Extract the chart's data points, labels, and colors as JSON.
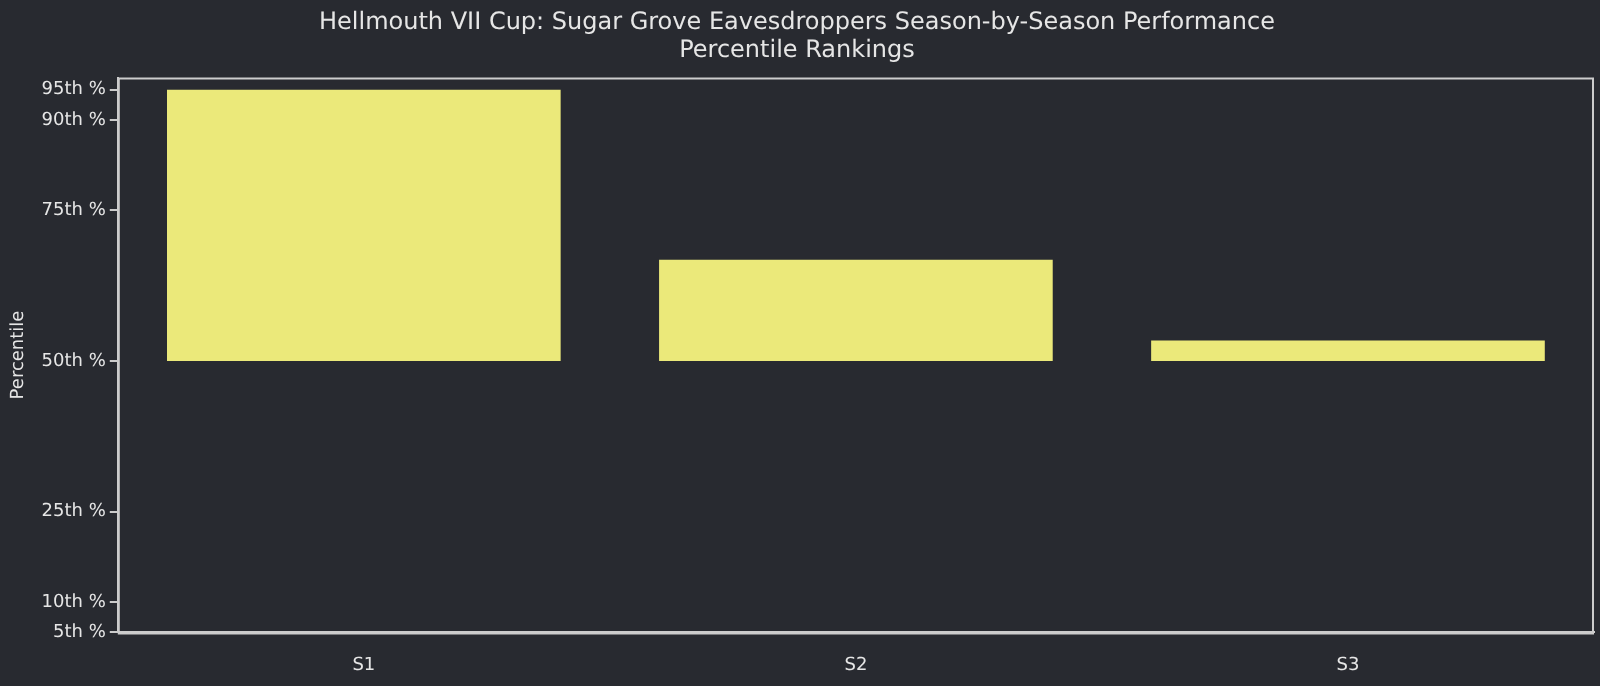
{
  "chart_data": {
    "type": "bar",
    "title": "Hellmouth VII Cup: Sugar Grove Eavesdroppers Season-by-Season Performance",
    "subtitle": "Percentile Rankings",
    "ylabel": "Percentile",
    "categories": [
      "S1",
      "S2",
      "S3"
    ],
    "base": [
      50,
      50,
      50
    ],
    "values": [
      45,
      16.8,
      3.4
    ],
    "color": "#ebe97a",
    "ylim": [
      5,
      97
    ],
    "yticks": [
      {
        "value": 5,
        "label": "5th %"
      },
      {
        "value": 10,
        "label": "10th %"
      },
      {
        "value": 25,
        "label": "25th %"
      },
      {
        "value": 50,
        "label": "50th %"
      },
      {
        "value": 75,
        "label": "75th %"
      },
      {
        "value": 90,
        "label": "90th %"
      },
      {
        "value": 95,
        "label": "95th %"
      }
    ],
    "grid": false,
    "legend": false
  }
}
